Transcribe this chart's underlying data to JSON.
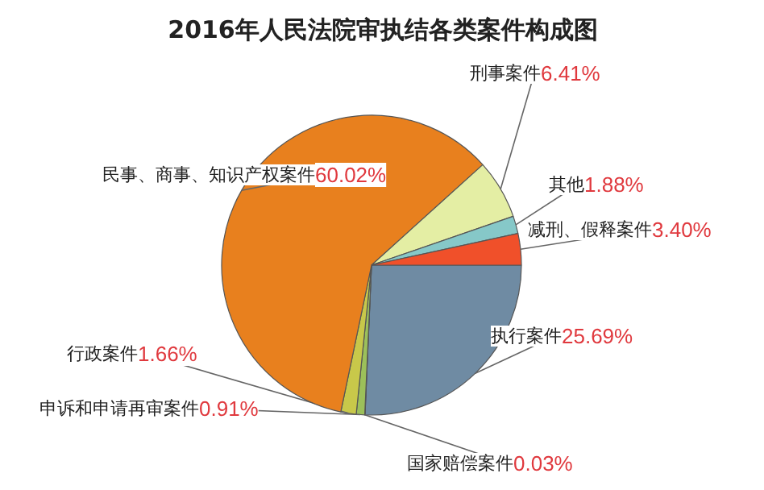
{
  "chart_data": {
    "type": "pie",
    "title": "2016年人民法院审执结各类案件构成图",
    "categories": [
      "执行案件",
      "国家赔偿案件",
      "申诉和申请再审案件",
      "行政案件",
      "民事、商事、知识产权案件",
      "刑事案件",
      "其他",
      "减刑、假释案件"
    ],
    "values": [
      25.69,
      0.03,
      0.91,
      1.66,
      60.02,
      6.41,
      1.88,
      3.4
    ],
    "value_labels": [
      "25.69%",
      "0.03%",
      "0.91%",
      "1.66%",
      "60.02%",
      "6.41%",
      "1.88%",
      "3.40%"
    ],
    "colors": [
      "#6f8ba3",
      "#2f6f8f",
      "#9cc05a",
      "#c8c84a",
      "#e8801e",
      "#e4eea4",
      "#86c8c8",
      "#f0502a"
    ]
  }
}
